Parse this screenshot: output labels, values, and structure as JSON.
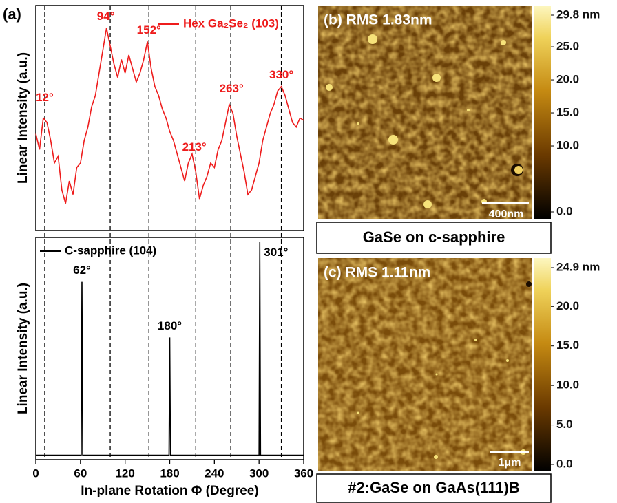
{
  "panel_label": "(a)",
  "chart_data": [
    {
      "type": "line",
      "ylabel": "Linear Intensity (a.u.)",
      "xlim": [
        0,
        360
      ],
      "ylim": [
        0,
        100
      ],
      "x": [
        0,
        5,
        10,
        15,
        20,
        25,
        30,
        35,
        40,
        45,
        50,
        55,
        60,
        65,
        70,
        75,
        80,
        85,
        90,
        95,
        100,
        105,
        110,
        115,
        120,
        125,
        130,
        135,
        140,
        145,
        150,
        155,
        160,
        165,
        170,
        175,
        180,
        185,
        190,
        195,
        200,
        205,
        210,
        215,
        220,
        225,
        230,
        235,
        240,
        245,
        250,
        255,
        260,
        265,
        270,
        275,
        280,
        285,
        290,
        295,
        300,
        305,
        310,
        315,
        320,
        325,
        330,
        335,
        340,
        345,
        350,
        355,
        360
      ],
      "series": [
        {
          "name": "Hex Ga₂Se₂ (103)",
          "color": "#ee1c1c",
          "values": [
            43,
            36,
            50,
            48,
            40,
            30,
            33,
            18,
            12,
            22,
            16,
            28,
            30,
            40,
            46,
            55,
            60,
            70,
            80,
            90,
            82,
            74,
            68,
            76,
            70,
            78,
            72,
            66,
            70,
            76,
            84,
            72,
            64,
            60,
            54,
            50,
            44,
            40,
            34,
            28,
            22,
            30,
            34,
            26,
            14,
            20,
            24,
            30,
            28,
            36,
            40,
            48,
            56,
            52,
            42,
            34,
            26,
            16,
            18,
            24,
            30,
            40,
            46,
            52,
            56,
            62,
            64,
            60,
            54,
            48,
            46,
            50,
            49
          ]
        }
      ],
      "annotations": [
        {
          "text": "12°",
          "x": 12,
          "y": 54
        },
        {
          "text": "94°",
          "x": 94,
          "y": 90
        },
        {
          "text": "152°",
          "x": 152,
          "y": 84
        },
        {
          "text": "213°",
          "x": 213,
          "y": 32
        },
        {
          "text": "263°",
          "x": 263,
          "y": 58
        },
        {
          "text": "330°",
          "x": 330,
          "y": 64
        }
      ],
      "vlines": [
        12,
        100,
        152,
        215,
        262,
        330
      ]
    },
    {
      "type": "line",
      "ylabel": "Linear Intensity (a.u.)",
      "xlabel": "In-plane Rotation Φ (Degree)",
      "xlim": [
        0,
        360
      ],
      "ylim": [
        0,
        100
      ],
      "xticks": [
        0,
        60,
        120,
        180,
        240,
        300,
        360
      ],
      "x": [
        0,
        60,
        61,
        62,
        63,
        178,
        179,
        180,
        181,
        299,
        300,
        301,
        302,
        360
      ],
      "series": [
        {
          "name": "C-sapphire (104)",
          "color": "#000000",
          "values": [
            2,
            2,
            2,
            80,
            2,
            2,
            2,
            55,
            2,
            2,
            2,
            98,
            2,
            2
          ]
        }
      ],
      "annotations": [
        {
          "text": "62°",
          "x": 62,
          "y": 80,
          "side": "top"
        },
        {
          "text": "180°",
          "x": 180,
          "y": 55,
          "side": "top"
        },
        {
          "text": "301°",
          "x": 301,
          "y": 98,
          "side": "right"
        }
      ]
    }
  ],
  "afm_panels": [
    {
      "label": "(b) RMS 1.83nm",
      "scale_bar": "400nm",
      "caption": "GaSe on c-sapphire",
      "colorbar": {
        "clim": [
          0,
          29.8
        ],
        "ticks": [
          {
            "value": 29.8,
            "label": "29.8 nm"
          },
          {
            "value": 25,
            "label": "25.0"
          },
          {
            "value": 20,
            "label": "20.0"
          },
          {
            "value": 15,
            "label": "15.0"
          },
          {
            "value": 10,
            "label": "10.0"
          },
          {
            "value": 0,
            "label": "0.0"
          }
        ]
      }
    },
    {
      "label": "(c) RMS 1.11nm",
      "scale_bar": "1μm",
      "caption": "#2:GaSe on GaAs(111)B",
      "colorbar": {
        "clim": [
          0,
          24.9
        ],
        "ticks": [
          {
            "value": 24.9,
            "label": "24.9 nm"
          },
          {
            "value": 20,
            "label": "20.0"
          },
          {
            "value": 15,
            "label": "15.0"
          },
          {
            "value": 10,
            "label": "10.0"
          },
          {
            "value": 5,
            "label": "5.0"
          },
          {
            "value": 0,
            "label": "0.0"
          }
        ]
      }
    }
  ]
}
